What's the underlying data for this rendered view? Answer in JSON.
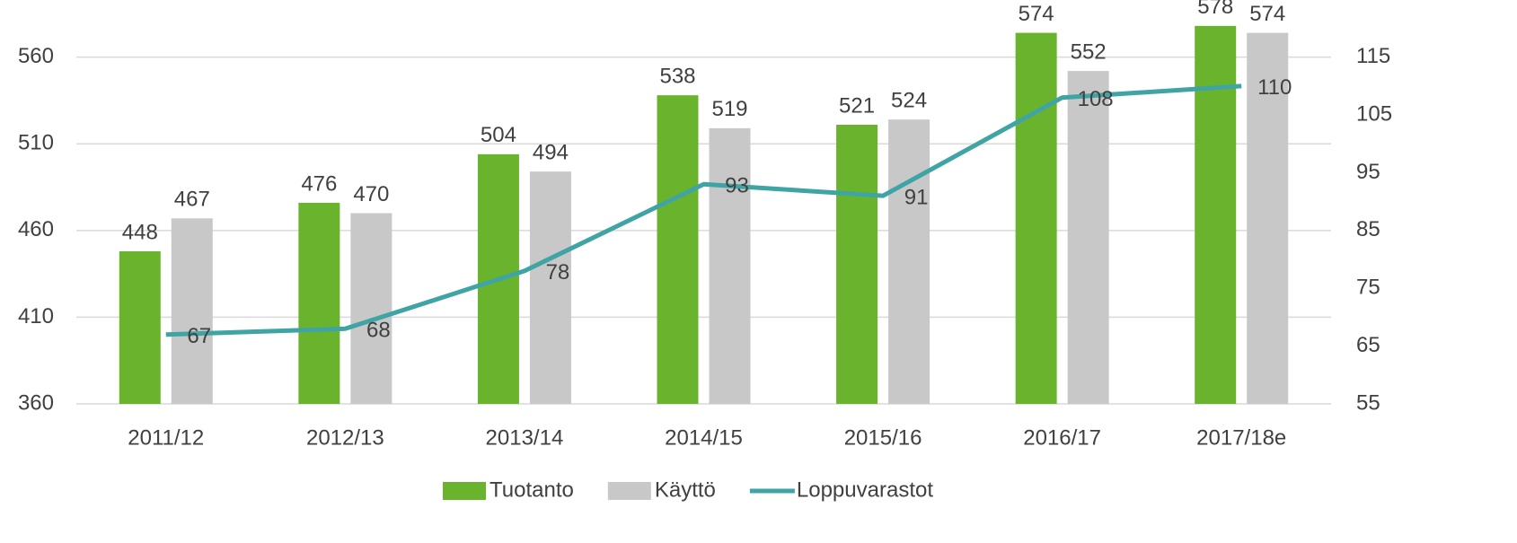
{
  "chart_data": {
    "type": "bar",
    "categories": [
      "2011/12",
      "2012/13",
      "2013/14",
      "2014/15",
      "2015/16",
      "2016/17",
      "2017/18e"
    ],
    "series": [
      {
        "name": "Tuotanto",
        "color": "#6ab42d",
        "values": [
          448,
          476,
          504,
          538,
          521,
          574,
          578
        ]
      },
      {
        "name": "Käyttö",
        "color": "#c8c8c8",
        "values": [
          467,
          470,
          494,
          519,
          524,
          552,
          574
        ]
      },
      {
        "name": "Loppuvarastot",
        "type": "line",
        "axis": "y2",
        "color": "#40a4a4",
        "values": [
          67,
          68,
          78,
          93,
          91,
          108,
          110
        ]
      }
    ],
    "ylim": [
      360,
      580
    ],
    "yticks": [
      360,
      410,
      460,
      510,
      560
    ],
    "y2lim": [
      55,
      121
    ],
    "y2ticks": [
      55,
      65,
      75,
      85,
      95,
      105,
      115
    ],
    "grid": true,
    "legend": "bottom"
  }
}
